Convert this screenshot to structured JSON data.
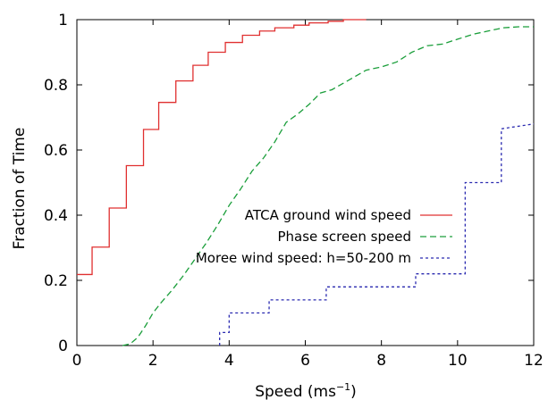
{
  "chart_data": {
    "type": "line",
    "title": "",
    "xlabel": "Speed (ms",
    "xlabel_sup": "−1",
    "xlabel_close": ")",
    "ylabel": "Fraction of Time",
    "xlim": [
      0,
      12
    ],
    "ylim": [
      0,
      1
    ],
    "xticks": [
      0,
      2,
      4,
      6,
      8,
      10,
      12
    ],
    "yticks": [
      0,
      0.2,
      0.4,
      0.6,
      0.8,
      1
    ],
    "xtick_labels": [
      "0",
      "2",
      "4",
      "6",
      "8",
      "10",
      "12"
    ],
    "ytick_labels": [
      "0",
      "0.2",
      "0.4",
      "0.6",
      "0.8",
      "1"
    ],
    "grid": false,
    "legend_position": "center-right",
    "series": [
      {
        "name": "ATCA ground wind speed",
        "color": "#e03030",
        "style": "solid",
        "step": true,
        "x": [
          0,
          0.4,
          0.4,
          0.85,
          0.85,
          1.3,
          1.3,
          1.75,
          1.75,
          2.15,
          2.15,
          2.6,
          2.6,
          3.05,
          3.05,
          3.45,
          3.45,
          3.9,
          3.9,
          4.35,
          4.35,
          4.8,
          4.8,
          5.2,
          5.2,
          5.7,
          5.7,
          6.1,
          6.1,
          6.6,
          6.6,
          7.0,
          7.0,
          7.6
        ],
        "y": [
          0.218,
          0.218,
          0.302,
          0.302,
          0.422,
          0.422,
          0.552,
          0.552,
          0.663,
          0.663,
          0.746,
          0.746,
          0.812,
          0.812,
          0.86,
          0.86,
          0.9,
          0.9,
          0.93,
          0.93,
          0.952,
          0.952,
          0.965,
          0.965,
          0.975,
          0.975,
          0.983,
          0.983,
          0.99,
          0.99,
          0.995,
          0.995,
          1.0,
          1.0
        ]
      },
      {
        "name": "Phase screen speed",
        "color": "#1a9e3a",
        "style": "dashed",
        "step": false,
        "x": [
          1.2,
          1.4,
          1.6,
          1.8,
          2.0,
          2.2,
          2.5,
          2.8,
          3.1,
          3.4,
          3.7,
          4.0,
          4.3,
          4.6,
          4.9,
          5.2,
          5.5,
          5.8,
          6.1,
          6.4,
          6.7,
          7.0,
          7.3,
          7.6,
          8.0,
          8.4,
          8.8,
          9.2,
          9.6,
          10.0,
          10.4,
          10.8,
          11.2,
          11.6,
          12.0
        ],
        "y": [
          0.0,
          0.005,
          0.025,
          0.06,
          0.1,
          0.13,
          0.17,
          0.215,
          0.265,
          0.315,
          0.37,
          0.43,
          0.48,
          0.535,
          0.575,
          0.625,
          0.685,
          0.71,
          0.74,
          0.775,
          0.785,
          0.805,
          0.825,
          0.845,
          0.855,
          0.87,
          0.9,
          0.92,
          0.925,
          0.94,
          0.955,
          0.965,
          0.975,
          0.978,
          0.978
        ]
      },
      {
        "name": "Moree wind speed: h=50-200 m",
        "color": "#2a2ab0",
        "style": "dotted",
        "step": true,
        "x": [
          3.75,
          3.75,
          4.0,
          4.0,
          5.05,
          5.05,
          6.55,
          6.55,
          8.9,
          8.9,
          10.2,
          10.2,
          11.15,
          11.15,
          12.0
        ],
        "y": [
          0.0,
          0.04,
          0.04,
          0.1,
          0.1,
          0.14,
          0.14,
          0.18,
          0.18,
          0.22,
          0.22,
          0.5,
          0.5,
          0.665,
          0.68
        ]
      }
    ]
  }
}
